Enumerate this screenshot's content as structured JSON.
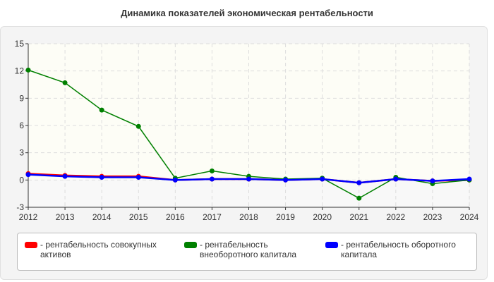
{
  "chart_data": {
    "type": "line",
    "title": "Динамика показателей экономическая рентабельности",
    "categories": [
      "2012",
      "2013",
      "2014",
      "2015",
      "2016",
      "2017",
      "2018",
      "2019",
      "2020",
      "2021",
      "2022",
      "2023",
      "2024"
    ],
    "ylim": [
      -3,
      15
    ],
    "yticks": [
      "-3",
      "0",
      "3",
      "6",
      "9",
      "12",
      "15"
    ],
    "grid": true,
    "legend_position": "bottom",
    "series": [
      {
        "name": "- рентабельность совокупных активов",
        "color": "#ff0000",
        "values": [
          0.7,
          0.5,
          0.4,
          0.4,
          0.0,
          0.1,
          0.1,
          0.0,
          0.1,
          -0.3,
          0.1,
          -0.1,
          0.0
        ]
      },
      {
        "name": "- рентабельность внеоборотного капитала",
        "color": "#008000",
        "values": [
          12.1,
          10.7,
          7.7,
          5.9,
          0.2,
          1.0,
          0.4,
          0.1,
          0.2,
          -2.0,
          0.3,
          -0.4,
          0.0
        ]
      },
      {
        "name": "- рентабельность оборотного капитала",
        "color": "#0000ff",
        "values": [
          0.6,
          0.4,
          0.3,
          0.3,
          0.0,
          0.1,
          0.1,
          0.0,
          0.1,
          -0.3,
          0.1,
          -0.1,
          0.1
        ]
      }
    ]
  }
}
